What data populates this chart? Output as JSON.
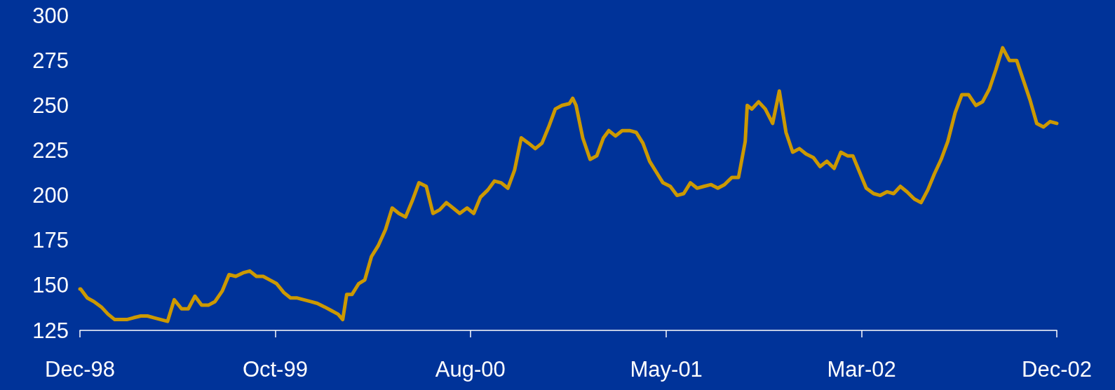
{
  "chart_data": {
    "type": "line",
    "x": [
      "1998-12-31",
      "1999-01-01",
      "1999-01-11",
      "1999-01-21",
      "1999-02-01",
      "1999-02-11",
      "1999-02-21",
      "1999-03-01",
      "1999-03-11",
      "1999-03-21",
      "1999-04-01",
      "1999-04-11",
      "1999-04-21",
      "1999-05-01",
      "1999-05-11",
      "1999-05-21",
      "1999-06-01",
      "1999-06-11",
      "1999-06-21",
      "1999-07-01",
      "1999-07-11",
      "1999-07-21",
      "1999-08-01",
      "1999-08-11",
      "1999-08-21",
      "1999-09-01",
      "1999-09-11",
      "1999-09-21",
      "1999-10-01",
      "1999-10-11",
      "1999-10-21",
      "1999-11-01",
      "1999-11-11",
      "1999-11-21",
      "1999-12-01",
      "1999-12-11",
      "1999-12-21",
      "2000-01-01",
      "2000-01-11",
      "2000-01-21",
      "2000-01-28",
      "2000-02-03",
      "2000-02-11",
      "2000-02-21",
      "2000-03-01",
      "2000-03-11",
      "2000-03-21",
      "2000-04-01",
      "2000-04-11",
      "2000-04-21",
      "2000-05-01",
      "2000-05-11",
      "2000-05-21",
      "2000-06-01",
      "2000-06-11",
      "2000-06-21",
      "2000-07-01",
      "2000-07-11",
      "2000-07-21",
      "2000-08-01",
      "2000-08-11",
      "2000-08-21",
      "2000-09-01",
      "2000-09-11",
      "2000-09-21",
      "2000-10-01",
      "2000-10-11",
      "2000-10-21",
      "2000-11-01",
      "2000-11-11",
      "2000-11-21",
      "2000-12-01",
      "2000-12-11",
      "2000-12-21",
      "2001-01-01",
      "2001-01-06",
      "2001-01-11",
      "2001-01-21",
      "2001-02-01",
      "2001-02-11",
      "2001-02-21",
      "2001-03-01",
      "2001-03-11",
      "2001-03-21",
      "2001-04-01",
      "2001-04-11",
      "2001-04-21",
      "2001-05-01",
      "2001-05-11",
      "2001-05-21",
      "2001-06-01",
      "2001-06-11",
      "2001-06-21",
      "2001-07-01",
      "2001-07-11",
      "2001-07-21",
      "2001-08-01",
      "2001-08-11",
      "2001-08-21",
      "2001-09-01",
      "2001-09-11",
      "2001-09-21",
      "2001-09-24",
      "2001-10-01",
      "2001-10-11",
      "2001-10-21",
      "2001-11-01",
      "2001-11-11",
      "2001-11-21",
      "2001-12-01",
      "2001-12-11",
      "2001-12-21",
      "2002-01-01",
      "2002-01-11",
      "2002-01-21",
      "2002-02-01",
      "2002-02-11",
      "2002-02-21",
      "2002-03-01",
      "2002-03-11",
      "2002-03-21",
      "2002-04-01",
      "2002-04-11",
      "2002-04-21",
      "2002-05-01",
      "2002-05-11",
      "2002-05-21",
      "2002-06-01",
      "2002-06-11",
      "2002-06-21",
      "2002-07-01",
      "2002-07-11",
      "2002-07-21",
      "2002-08-01",
      "2002-08-11",
      "2002-08-21",
      "2002-09-01",
      "2002-09-11",
      "2002-09-21",
      "2002-10-01",
      "2002-10-11",
      "2002-10-21",
      "2002-11-01",
      "2002-11-11",
      "2002-11-21",
      "2002-12-01",
      "2002-12-11",
      "2002-12-21",
      "2002-12-31"
    ],
    "series": [
      {
        "color": "#cc9900",
        "values": [
          148,
          148,
          143,
          141,
          138,
          134,
          131,
          131,
          131,
          132,
          133,
          133,
          132,
          131,
          130,
          142,
          137,
          137,
          144,
          139,
          139,
          141,
          147,
          156,
          155,
          157,
          158,
          155,
          155,
          153,
          151,
          146,
          143,
          143,
          142,
          141,
          140,
          138,
          136,
          134,
          131,
          145,
          145,
          151,
          153,
          166,
          172,
          181,
          193,
          190,
          188,
          197,
          207,
          205,
          190,
          192,
          196,
          193,
          190,
          193,
          190,
          199,
          203,
          208,
          207,
          204,
          214,
          232,
          229,
          226,
          229,
          238,
          248,
          250,
          251,
          254,
          250,
          232,
          220,
          222,
          232,
          236,
          233,
          236,
          236,
          235,
          229,
          219,
          213,
          207,
          205,
          200,
          201,
          207,
          204,
          205,
          206,
          204,
          206,
          210,
          210,
          230,
          250,
          248,
          252,
          248,
          240,
          258,
          235,
          224,
          226,
          223,
          221,
          216,
          219,
          215,
          224,
          222,
          222,
          213,
          204,
          201,
          200,
          202,
          201,
          205,
          202,
          198,
          196,
          203,
          212,
          220,
          230,
          246,
          256,
          256,
          250,
          252,
          259,
          270,
          282,
          275,
          275,
          264,
          253,
          240,
          238,
          241,
          240
        ]
      }
    ],
    "xlim": [
      "1998-12-31",
      "2002-12-31"
    ],
    "xticks": [
      {
        "value": "1998-12-31",
        "label": "Dec-98"
      },
      {
        "value": "1999-10-19",
        "label": "Oct-99"
      },
      {
        "value": "2000-08-06",
        "label": "Aug-00"
      },
      {
        "value": "2001-05-26",
        "label": "May-01"
      },
      {
        "value": "2002-03-14",
        "label": "Mar-02"
      },
      {
        "value": "2002-12-31",
        "label": "Dec-02"
      }
    ],
    "ylim": [
      125,
      300
    ],
    "yticks": [
      125,
      150,
      175,
      200,
      225,
      250,
      275,
      300
    ],
    "grid": false,
    "marker": "none",
    "line_style": "solid"
  }
}
